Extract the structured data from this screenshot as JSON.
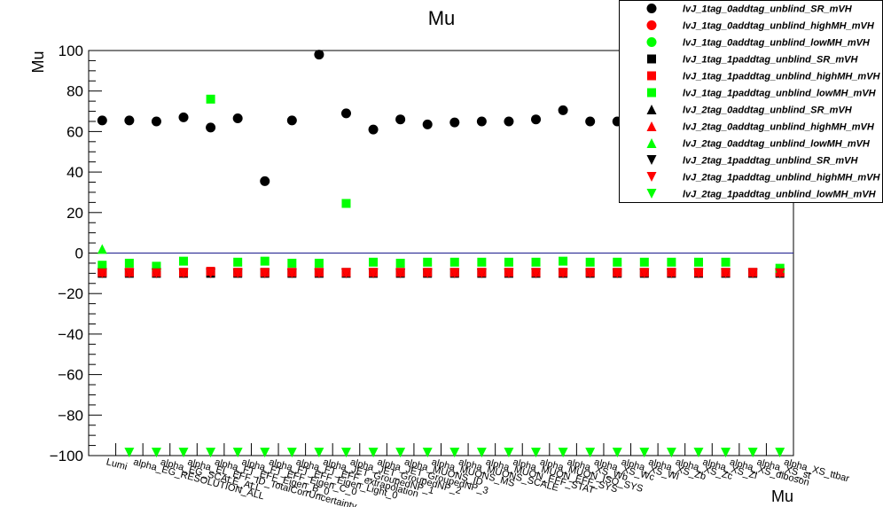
{
  "chart_data": {
    "type": "scatter",
    "title": "Mu",
    "ylabel": "Mu",
    "xlabel": "Mu",
    "ylim": [
      -100,
      100
    ],
    "yticks": [
      -100,
      -80,
      -60,
      -40,
      -20,
      0,
      20,
      40,
      60,
      80,
      100
    ],
    "categories": [
      "Lumi",
      "alpha_EG_RESOLUTION_ALL",
      "alpha_EG_SCALE_ALL",
      "alpha_EL_EFF_ID_TotalCorrUncertainty",
      "alpha_FT_EFF_Eigen_B_0",
      "alpha_FT_EFF_Eigen_C_0",
      "alpha_FT_EFF_Eigen_Light_0",
      "alpha_FT_EFF_extrapolation",
      "alpha_JET_GroupedNP_1",
      "alpha_JET_GroupedNP_2",
      "alpha_JET_GroupedNP_3",
      "alpha_MUONS_ID",
      "alpha_MUONS_MS",
      "alpha_MUONS_SCALE",
      "alpha_MUON_EFF_STAT",
      "alpha_MUON_EFF_SYS",
      "alpha_MUON_ISO_SYS",
      "alpha_XS_Wb",
      "alpha_XS_Wc",
      "alpha_XS_Wl",
      "alpha_XS_Zb",
      "alpha_XS_Zc",
      "alpha_XS_Zl",
      "alpha_XS_diboson",
      "alpha_XS_st",
      "alpha_XS_ttbar"
    ],
    "zero_line": true,
    "zero_line_color": "#1a1a8c",
    "legend": "top-right",
    "series": [
      {
        "name": "lvJ_1tag_0addtag_unblind_SR_mVH",
        "marker": "circle",
        "color": "#000000",
        "values": [
          65.5,
          65.5,
          65,
          67,
          62,
          66.5,
          35.5,
          65.5,
          98,
          69,
          61,
          66,
          63.5,
          64.5,
          65,
          65,
          66,
          70.5,
          65,
          65,
          null,
          null,
          null,
          null,
          null,
          null
        ]
      },
      {
        "name": "lvJ_1tag_0addtag_unblind_highMH_mVH",
        "marker": "circle",
        "color": "#ff0000",
        "values": []
      },
      {
        "name": "lvJ_1tag_0addtag_unblind_lowMH_mVH",
        "marker": "circle",
        "color": "#00ff00",
        "values": []
      },
      {
        "name": "lvJ_1tag_1paddtag_unblind_SR_mVH",
        "marker": "square",
        "color": "#000000",
        "values": [
          -10,
          -10,
          -10,
          -10,
          -10,
          -10,
          -10,
          -10,
          -10,
          -10,
          -10,
          -10,
          -10,
          -10,
          -10,
          -10,
          -10,
          -10,
          -10,
          -10,
          -10,
          -10,
          -10,
          -10,
          -10,
          -10
        ]
      },
      {
        "name": "lvJ_1tag_1paddtag_unblind_highMH_mVH",
        "marker": "square",
        "color": "#ff0000",
        "values": [
          -9.5,
          -9.5,
          -9.5,
          -9.5,
          -9,
          -9.5,
          -9.5,
          -9.5,
          -9.5,
          -9.5,
          -9.5,
          -9.5,
          -9.5,
          -9.5,
          -9.5,
          -9.5,
          -9.5,
          -9.5,
          -9.5,
          -9.5,
          -9.5,
          -9.5,
          -9.5,
          -9.5,
          -9.5,
          -9.5
        ]
      },
      {
        "name": "lvJ_1tag_1paddtag_unblind_lowMH_mVH",
        "marker": "square",
        "color": "#00ff00",
        "values": [
          -6,
          -5,
          -6.5,
          -4,
          76,
          -4.5,
          -4,
          -5,
          -5,
          24.5,
          -4.5,
          -5,
          -4.5,
          -4.5,
          -4.5,
          -4.5,
          -4.5,
          -4,
          -4.5,
          -4.5,
          -4.5,
          -4.5,
          -4.5,
          -4.5,
          null,
          -7.5
        ]
      },
      {
        "name": "lvJ_2tag_0addtag_unblind_SR_mVH",
        "marker": "triangle-up",
        "color": "#000000",
        "values": []
      },
      {
        "name": "lvJ_2tag_0addtag_unblind_highMH_mVH",
        "marker": "triangle-up",
        "color": "#ff0000",
        "values": []
      },
      {
        "name": "lvJ_2tag_0addtag_unblind_lowMH_mVH",
        "marker": "triangle-up",
        "color": "#00ff00",
        "values": [
          2,
          null,
          null,
          null,
          null,
          null,
          null,
          null,
          null,
          null,
          null,
          null,
          null,
          null,
          null,
          null,
          null,
          null,
          null,
          null,
          null,
          null,
          null,
          null,
          null,
          null
        ]
      },
      {
        "name": "lvJ_2tag_1paddtag_unblind_SR_mVH",
        "marker": "triangle-down",
        "color": "#000000",
        "values": [
          -10,
          -10,
          -10,
          -10,
          -10,
          -10,
          -10,
          -10,
          -10,
          -10,
          -10,
          -10,
          -10,
          -10,
          -10,
          -10,
          -10,
          -10,
          -10,
          -10,
          -10,
          -10,
          -10,
          -10,
          -10,
          -10
        ]
      },
      {
        "name": "lvJ_2tag_1paddtag_unblind_highMH_mVH",
        "marker": "triangle-down",
        "color": "#ff0000",
        "values": [
          -10,
          -10,
          -10,
          -10,
          -10,
          -10,
          -10,
          -10,
          -10,
          -10,
          -10,
          -10,
          -10,
          -10,
          -10,
          -10,
          -10,
          -10,
          -10,
          -10,
          -10,
          -10,
          -10,
          -10,
          -10,
          -10
        ]
      },
      {
        "name": "lvJ_2tag_1paddtag_unblind_lowMH_mVH",
        "marker": "triangle-down",
        "color": "#00ff00",
        "values": [
          null,
          -98.5,
          -98.5,
          -98.5,
          -98.5,
          -98.5,
          -98.5,
          -98.5,
          -98.5,
          -98.5,
          -98.5,
          -98.5,
          -98.5,
          -98.5,
          -98.5,
          -98.5,
          -98.5,
          -98.5,
          -98.5,
          -98.5,
          -98.5,
          -98.5,
          -98.5,
          -98.5,
          -98.5,
          -98.5
        ]
      }
    ]
  }
}
